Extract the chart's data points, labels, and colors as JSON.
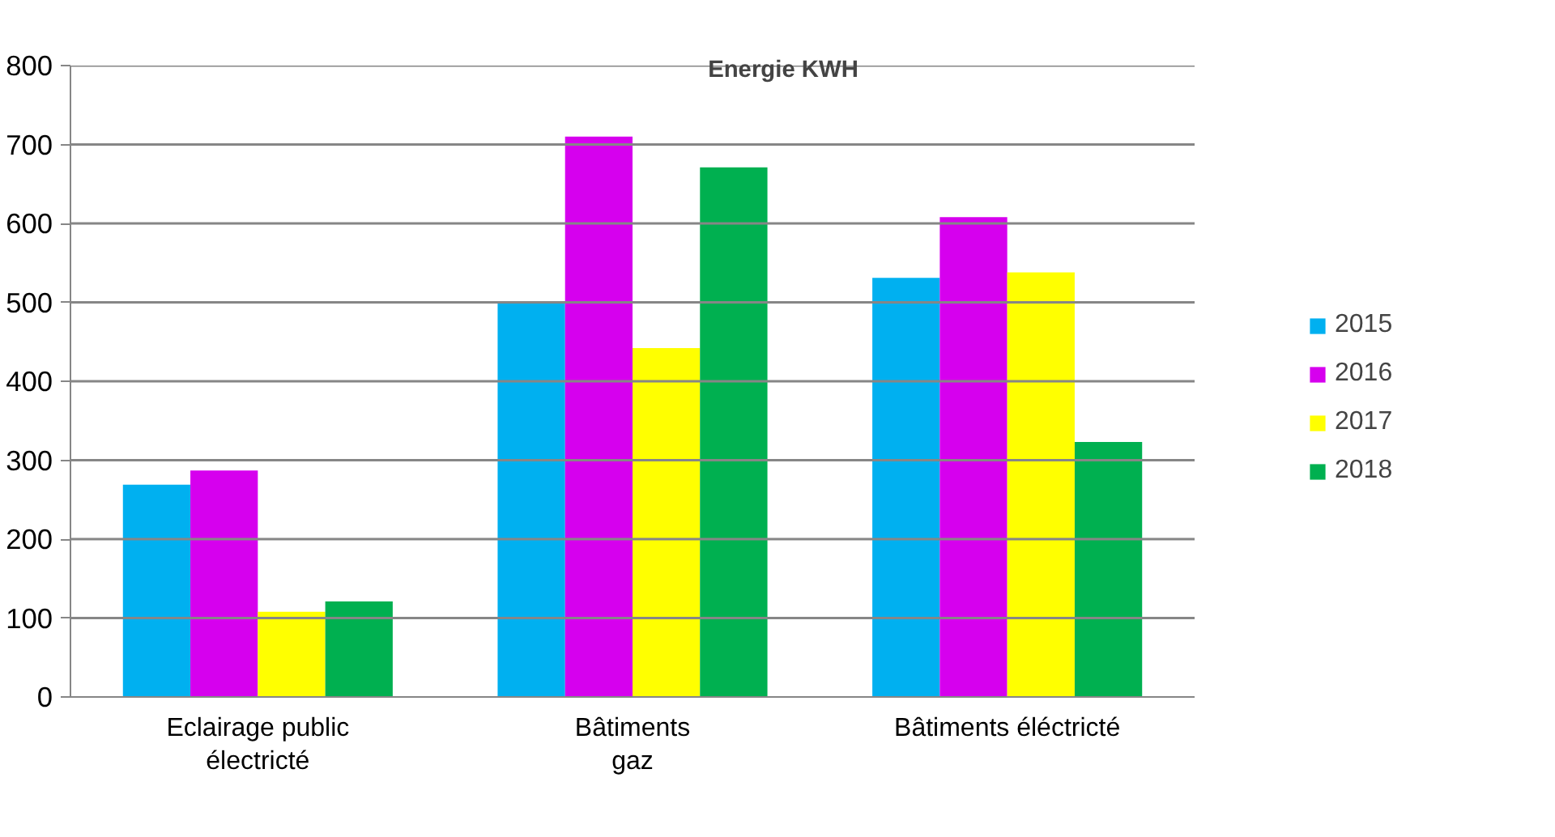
{
  "chart_data": {
    "type": "bar",
    "title": "Energie KWH",
    "categories": [
      "Eclairage public\nélectricté",
      "Bâtiments\ngaz",
      "Bâtiments éléctricté"
    ],
    "series": [
      {
        "name": "2015",
        "color": "#00b0f0",
        "values": [
          269,
          500,
          531
        ]
      },
      {
        "name": "2016",
        "color": "#d600ee",
        "values": [
          287,
          710,
          608
        ]
      },
      {
        "name": "2017",
        "color": "#ffff00",
        "values": [
          108,
          442,
          538
        ]
      },
      {
        "name": "2018",
        "color": "#00b050",
        "values": [
          121,
          671,
          323
        ]
      }
    ],
    "ylim": [
      0,
      800
    ],
    "yticks": [
      0,
      100,
      200,
      300,
      400,
      500,
      600,
      700,
      800
    ],
    "grid": "y",
    "legend": "right"
  }
}
